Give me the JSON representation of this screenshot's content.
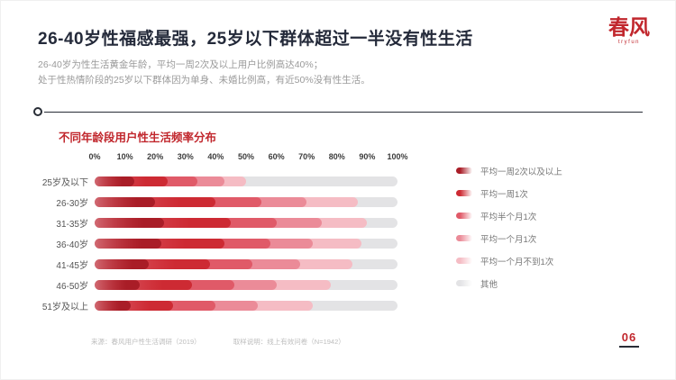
{
  "header": {
    "title": "26-40岁性福感最强，25岁以下群体超过一半没有性生活",
    "subtitle_line1": "26-40岁为性生活黄金年龄，平均一周2次及以上用户比例高达40%；",
    "subtitle_line2": "处于性热情阶段的25岁以下群体因为单身、未婚比例高，有近50%没有性生活。",
    "logo_text": "春风",
    "logo_subtext": "tryfun"
  },
  "footer": {
    "note1": "来源：春风用户性生活调研（2019）",
    "note2": "取样说明：线上有效问卷（N=1942）",
    "page_number": "06"
  },
  "chart_data": {
    "type": "bar",
    "orientation": "horizontal-stacked",
    "title": "不同年龄段用户性生活频率分布",
    "categories": [
      "25岁及以下",
      "26-30岁",
      "31-35岁",
      "36-40岁",
      "41-45岁",
      "46-50岁",
      "51岁及以上"
    ],
    "x_ticks": [
      "0%",
      "10%",
      "20%",
      "30%",
      "40%",
      "50%",
      "60%",
      "70%",
      "80%",
      "90%",
      "100%"
    ],
    "xlim": [
      0,
      100
    ],
    "grid": false,
    "legend_position": "right",
    "series": [
      {
        "name": "平均一周2次以及以上",
        "color": "#a91d27",
        "values": [
          13,
          20,
          23,
          22,
          18,
          15,
          12
        ]
      },
      {
        "name": "平均一周1次",
        "color": "#cd2a33",
        "values": [
          11,
          20,
          22,
          21,
          20,
          17,
          14
        ]
      },
      {
        "name": "平均半个月1次",
        "color": "#e05a68",
        "values": [
          10,
          15,
          15,
          15,
          14,
          14,
          14
        ]
      },
      {
        "name": "平均一个月1次",
        "color": "#eb8b98",
        "values": [
          9,
          15,
          15,
          14,
          16,
          14,
          14
        ]
      },
      {
        "name": "平均一个月不到1次",
        "color": "#f5bcc4",
        "values": [
          7,
          17,
          15,
          16,
          17,
          18,
          18
        ]
      },
      {
        "name": "其他",
        "color": "#e3e3e5",
        "values": [
          50,
          13,
          10,
          12,
          15,
          22,
          28
        ]
      }
    ]
  }
}
